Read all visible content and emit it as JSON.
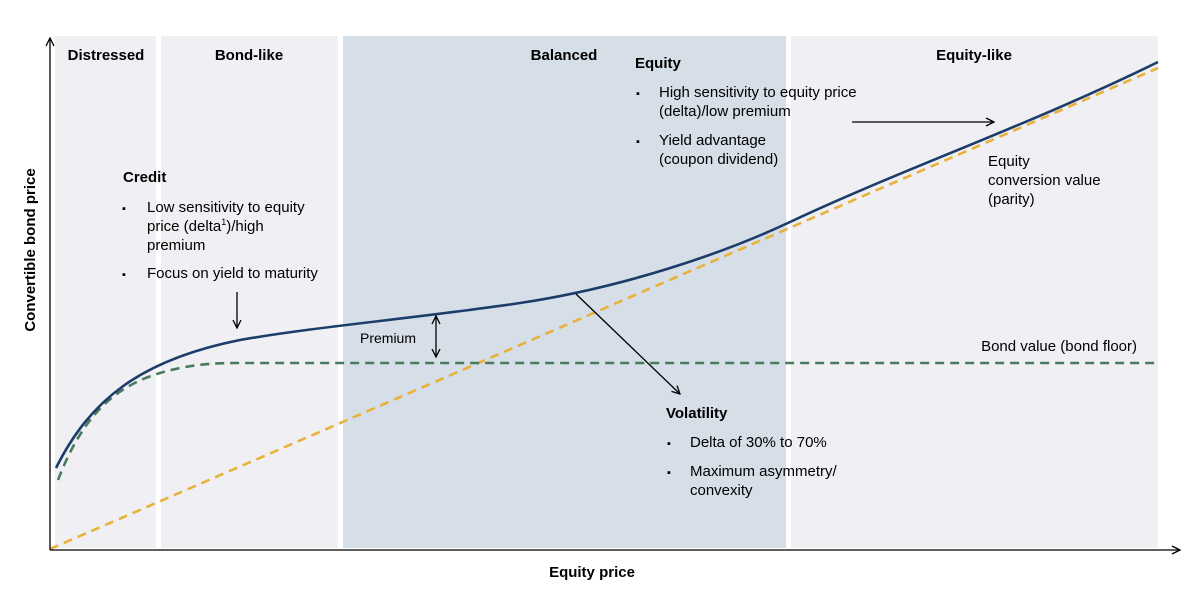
{
  "chart_data": {
    "type": "line",
    "xlabel": "Equity price",
    "ylabel": "Convertible bond price",
    "zones": [
      {
        "name": "Distressed",
        "shade": "#f0f0f4"
      },
      {
        "name": "Bond-like",
        "shade": "#f0f0f4"
      },
      {
        "name": "Balanced",
        "shade": "#d6dee8"
      },
      {
        "name": "Equity-like",
        "shade": "#f0f0f4"
      }
    ],
    "series": [
      {
        "key": "convertible",
        "style": "solid",
        "color": "#1c3c6a"
      },
      {
        "key": "bond_floor",
        "name": "Bond value (bond floor)",
        "style": "dashed",
        "color": "#4a7a5c"
      },
      {
        "key": "parity",
        "name": "Equity conversion value (parity)",
        "style": "dashed",
        "color": "#e8b23a"
      }
    ],
    "annotations": {
      "credit": {
        "title": "Credit",
        "bullets": [
          {
            "pre": "Low sensitivity to equity",
            "line2": "price (delta",
            "sup": "1",
            "post": ")/high",
            "line3": "premium"
          },
          {
            "text": "Focus on yield to maturity"
          }
        ]
      },
      "equity": {
        "title": "Equity",
        "bullets": [
          {
            "lines": [
              "High sensitivity to equity price",
              "(delta)/low premium"
            ]
          },
          {
            "lines": [
              "Yield advantage",
              "(coupon dividend)"
            ]
          }
        ]
      },
      "volatility": {
        "title": "Volatility",
        "bullets": [
          {
            "lines": [
              "Delta of 30% to 70%"
            ]
          },
          {
            "lines": [
              "Maximum asymmetry/",
              "convexity"
            ]
          }
        ]
      },
      "premium": "Premium",
      "parity_label": [
        "Equity",
        "conversion value",
        "(parity)"
      ],
      "floor_label": "Bond value (bond floor)"
    },
    "bullet_glyph": "▪"
  }
}
